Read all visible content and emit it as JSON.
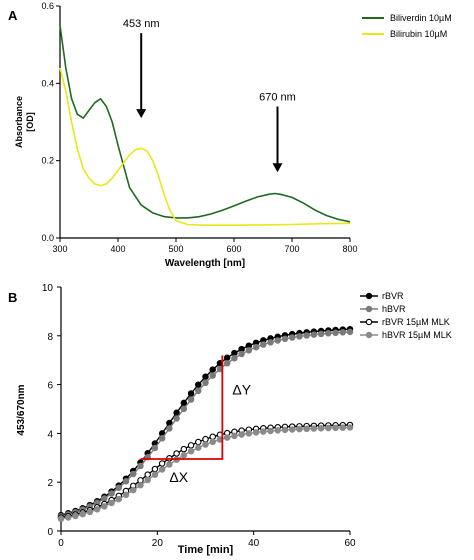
{
  "panels": {
    "a": {
      "letter": "A"
    },
    "b": {
      "letter": "B"
    }
  },
  "chart_data": [
    {
      "type": "line",
      "panel": "A",
      "xlabel": "Wavelength [nm]",
      "ylabel_top": "Absorbance",
      "ylabel_bottom": "[OD]",
      "xlim": [
        300,
        800
      ],
      "ylim": [
        0,
        0.6
      ],
      "xticks": [
        300,
        400,
        500,
        600,
        700,
        800
      ],
      "yticks": [
        0.0,
        0.2,
        0.4,
        0.6
      ],
      "ytick_labels": [
        "0.0",
        "0.2",
        "0.4",
        "0.6"
      ],
      "grid": false,
      "legend_position": "top-right",
      "series": [
        {
          "name": "Biliverdin 10µM",
          "color": "#1e6b1e",
          "x": [
            300,
            310,
            320,
            330,
            340,
            350,
            360,
            370,
            380,
            390,
            400,
            420,
            440,
            460,
            480,
            500,
            520,
            540,
            560,
            580,
            600,
            620,
            640,
            660,
            670,
            680,
            700,
            720,
            740,
            760,
            780,
            800
          ],
          "y": [
            0.55,
            0.44,
            0.36,
            0.32,
            0.31,
            0.33,
            0.35,
            0.36,
            0.34,
            0.3,
            0.24,
            0.13,
            0.085,
            0.065,
            0.055,
            0.052,
            0.052,
            0.055,
            0.062,
            0.072,
            0.083,
            0.095,
            0.106,
            0.113,
            0.115,
            0.113,
            0.105,
            0.09,
            0.072,
            0.058,
            0.048,
            0.042
          ]
        },
        {
          "name": "Bilirubin 10µM",
          "color": "#e8e81a",
          "x": [
            300,
            310,
            320,
            330,
            340,
            350,
            360,
            370,
            380,
            390,
            400,
            410,
            420,
            430,
            440,
            450,
            460,
            470,
            480,
            490,
            500,
            520,
            550,
            600,
            650,
            700,
            750,
            800
          ],
          "y": [
            0.44,
            0.38,
            0.3,
            0.23,
            0.18,
            0.155,
            0.14,
            0.135,
            0.14,
            0.155,
            0.175,
            0.195,
            0.215,
            0.228,
            0.232,
            0.225,
            0.2,
            0.16,
            0.11,
            0.07,
            0.045,
            0.035,
            0.033,
            0.033,
            0.034,
            0.035,
            0.037,
            0.038
          ]
        }
      ],
      "annotations": [
        {
          "label": "453 nm",
          "x": 440,
          "y_from": 0.53,
          "y_to": 0.31
        },
        {
          "label": "670 nm",
          "x": 675,
          "y_from": 0.34,
          "y_to": 0.17
        }
      ]
    },
    {
      "type": "line",
      "panel": "B",
      "xlabel": "Time [min]",
      "ylabel": "453/670nm",
      "xlim": [
        0,
        60
      ],
      "ylim": [
        0,
        10
      ],
      "xticks": [
        0,
        20,
        40,
        60
      ],
      "yticks": [
        0,
        2,
        4,
        6,
        8,
        10
      ],
      "grid": false,
      "legend_position": "top-right",
      "series": [
        {
          "name": "rBVR",
          "color": "#000000",
          "marker": "filled-circle",
          "plateau": 8.3,
          "start": 0.65,
          "midpoint": 22,
          "steepness": 0.145
        },
        {
          "name": "hBVR",
          "color": "#7a7a7a",
          "marker": "filled-circle",
          "plateau": 8.2,
          "start": 0.6,
          "midpoint": 22.5,
          "steepness": 0.14
        },
        {
          "name": "rBVR 15µM MLK",
          "color": "#000000",
          "marker": "open-circle",
          "plateau": 4.35,
          "start": 0.55,
          "midpoint": 18,
          "steepness": 0.16
        },
        {
          "name": "hBVR 15µM MLK",
          "color": "#8a8a8a",
          "marker": "filled-circle",
          "plateau": 4.25,
          "start": 0.5,
          "midpoint": 19,
          "steepness": 0.15
        }
      ],
      "annotations": {
        "color": "#dd0000",
        "x_start": 16.5,
        "x_end": 33.5,
        "y_low": 2.95,
        "y_high": 7.2,
        "dy_label": "ΔY",
        "dx_label": "ΔX"
      }
    }
  ]
}
